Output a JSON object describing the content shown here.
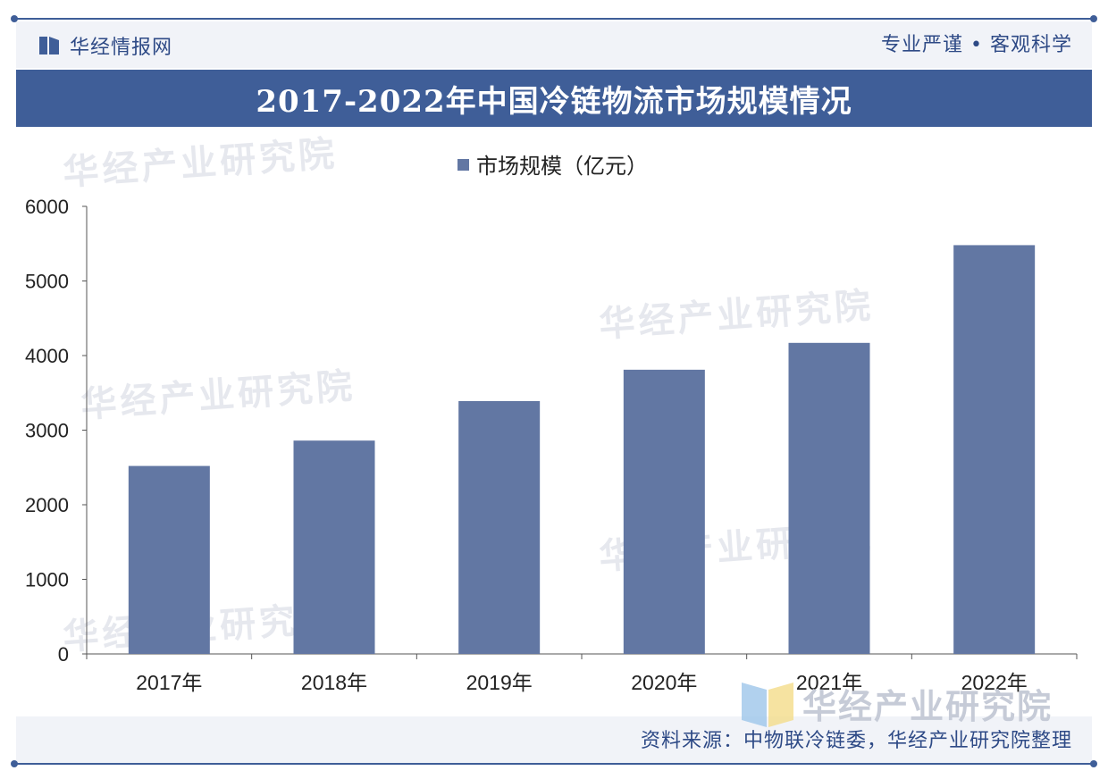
{
  "header": {
    "brand": "华经情报网",
    "motto": "专业严谨 • 客观科学",
    "title": "2017-2022年中国冷链物流市场规模情况"
  },
  "footer": {
    "source": "资料来源：中物联冷链委，华经产业研究院整理"
  },
  "watermark": {
    "text": "华经产业研究院",
    "corner_text": "华经产业研究院"
  },
  "colors": {
    "bar": "#6277a3",
    "banner": "#3f5e98",
    "text": "#2e4a86"
  },
  "icons": [
    "brand-logo-icon",
    "watermark-logo-icon"
  ],
  "chart_data": {
    "type": "bar",
    "title": "",
    "xlabel": "",
    "ylabel": "",
    "categories": [
      "2017年",
      "2018年",
      "2019年",
      "2020年",
      "2021年",
      "2022年"
    ],
    "series": [
      {
        "name": "市场规模（亿元）",
        "values": [
          2520,
          2860,
          3390,
          3810,
          4170,
          5480
        ]
      }
    ],
    "ylim": [
      0,
      6000
    ],
    "yticks": [
      0,
      1000,
      2000,
      3000,
      4000,
      5000,
      6000
    ],
    "legend": "top-center",
    "grid": false
  }
}
